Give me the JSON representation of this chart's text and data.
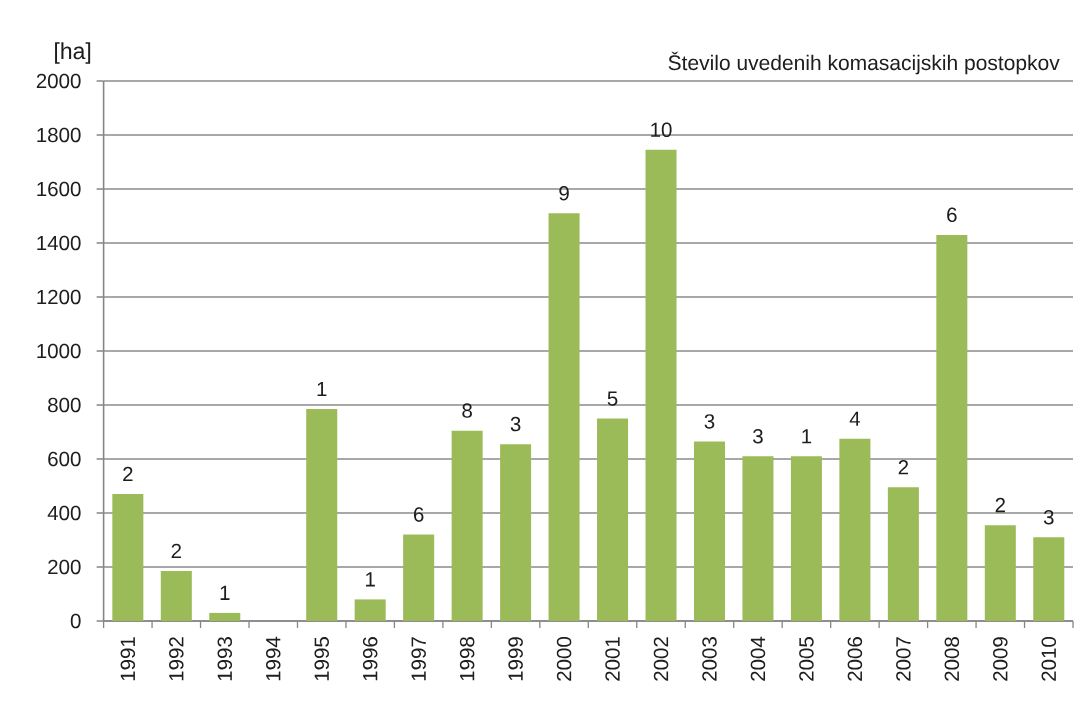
{
  "chart_data": {
    "type": "bar",
    "ylabel": "[ha]",
    "annotations": [
      "Število uvedenih komasacijskih postopkov",
      {
        "text": "2",
        "x": "1991",
        "y": 470
      },
      {
        "text": "2",
        "x": "1992",
        "y": 185
      },
      {
        "text": "1",
        "x": "1993",
        "y": 30
      },
      {
        "text": "1",
        "x": "1995",
        "y": 785
      },
      {
        "text": "1",
        "x": "1996",
        "y": 80
      },
      {
        "text": "6",
        "x": "1997",
        "y": 320
      },
      {
        "text": "8",
        "x": "1998",
        "y": 705
      },
      {
        "text": "3",
        "x": "1999",
        "y": 655
      },
      {
        "text": "9",
        "x": "2000",
        "y": 1510
      },
      {
        "text": "5",
        "x": "2001",
        "y": 750
      },
      {
        "text": "10",
        "x": "2002",
        "y": 1745
      },
      {
        "text": "3",
        "x": "2003",
        "y": 665
      },
      {
        "text": "3",
        "x": "2004",
        "y": 610
      },
      {
        "text": "1",
        "x": "2005",
        "y": 610
      },
      {
        "text": "4",
        "x": "2006",
        "y": 675
      },
      {
        "text": "2",
        "x": "2007",
        "y": 495
      },
      {
        "text": "6",
        "x": "2008",
        "y": 1430
      },
      {
        "text": "2",
        "x": "2009",
        "y": 355
      },
      {
        "text": "3",
        "x": "2010",
        "y": 310
      }
    ],
    "categories": [
      "1991",
      "1992",
      "1993",
      "1994",
      "1995",
      "1996",
      "1997",
      "1998",
      "1999",
      "2000",
      "2001",
      "2002",
      "2003",
      "2004",
      "2005",
      "2006",
      "2007",
      "2008",
      "2009",
      "2010"
    ],
    "values": [
      470,
      185,
      30,
      null,
      785,
      80,
      320,
      705,
      655,
      1510,
      750,
      1745,
      665,
      610,
      610,
      675,
      495,
      1430,
      355,
      310
    ],
    "color": "#9bbb59",
    "ylim": [
      0,
      2000
    ],
    "yticks": [
      0,
      200,
      400,
      600,
      800,
      1000,
      1200,
      1400,
      1600,
      1800,
      2000
    ],
    "grid": "y"
  }
}
